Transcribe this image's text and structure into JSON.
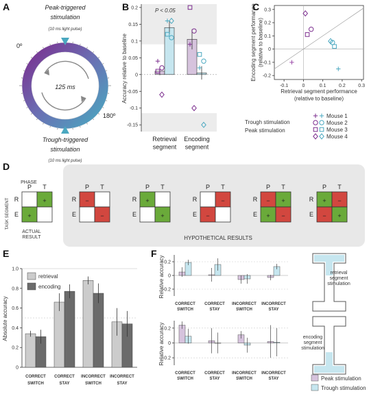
{
  "colors": {
    "peak": "#7b2d8e",
    "trough": "#4aa8c0",
    "peak_fill": "#d6c3dd",
    "trough_fill": "#c6e6ef",
    "ret_gray": "#cccccc",
    "enc_gray": "#6b6b6b",
    "correct": "#5aa02c",
    "incorrect": "#d0312d",
    "stay": "#4a78c0",
    "switch": "#111111",
    "plus_cell": "#6aaa3a",
    "minus_cell": "#d2473f",
    "mouse1": "#9b4aa8"
  },
  "panelA": {
    "label": "A",
    "peak_title": "Peak-triggered\nstimulation",
    "peak_sub": "(10 ms light pulse)",
    "trough_title": "Trough-triggered\nstimulation",
    "trough_sub": "(10 ms light pulse)",
    "period": "125 ms",
    "deg0": "0º",
    "deg180": "180º"
  },
  "panelB": {
    "label": "B",
    "ylabel": "Accuracy relative to baseline",
    "sig": "P < 0.05",
    "y_ticks": [
      "0.2",
      "0.15",
      "0.1",
      "0.05",
      "0",
      "-0.05",
      "-0.1",
      "-0.15"
    ],
    "groups": [
      "Retrieval\nsegment",
      "Encoding\nsegment"
    ]
  },
  "panelC": {
    "label": "C",
    "xlabel": "Retrieval segment performance\n(relative to baseline)",
    "ylabel": "Encoding segment performance\n(relative to baseline)",
    "x_ticks": [
      "-0.1",
      "0",
      "0.1",
      "0.2",
      "0.3"
    ],
    "y_ticks": [
      "0.3",
      "0.2",
      "0.1",
      "0",
      "-0.1",
      "-0.2"
    ],
    "mice": [
      "Mouse 1",
      "Mouse 2",
      "Mouse 3",
      "Mouse 4"
    ],
    "trough_label": "Trough stimulation",
    "peak_label": "Peak stimulation"
  },
  "panelD": {
    "label": "D",
    "phase": "PHASE",
    "task_segment": "TASK SEGMENT",
    "P": "P",
    "T": "T",
    "R": "R",
    "E": "E",
    "actual": "ACTUAL\nRESULT",
    "hypothetical": "HYPOTHETICAL RESULTS",
    "plus": "+",
    "minus": "−"
  },
  "panelE": {
    "label": "E",
    "ylabel": "Absolute accuracy",
    "legend": [
      "retrieval",
      "encoding"
    ],
    "y_ticks": [
      "1.0",
      "0.8",
      "0.6",
      "0.4",
      "0.2",
      "0"
    ],
    "cat_top": [
      "CORRECT",
      "CORRECT",
      "INCORRECT",
      "INCORRECT"
    ],
    "cat_bottom": [
      "SWITCH",
      "STAY",
      "SWITCH",
      "STAY"
    ]
  },
  "panelF": {
    "label": "F",
    "ylabel": "Relative accuracy",
    "y_ticks": [
      "0.2",
      "0",
      "-0.2"
    ],
    "cat_top": [
      "CORRECT",
      "CORRECT",
      "INCORRECT",
      "INCORRECT"
    ],
    "cat_bottom": [
      "SWITCH",
      "STAY",
      "SWITCH",
      "STAY"
    ],
    "retrieval_label": "retrieval\nsegment\nstimulation",
    "encoding_label": "encoding\nsegment\nstimulation",
    "legend_peak": "Peak stimulation",
    "legend_trough": "Trough stimulation"
  },
  "chart_data": [
    {
      "type": "bar",
      "panel": "B",
      "categories": [
        "Retrieval segment",
        "Encoding segment"
      ],
      "ylim": [
        -0.17,
        0.21
      ],
      "series": [
        {
          "name": "Peak stimulation",
          "values": [
            0.01,
            0.105
          ],
          "err": [
            0.012,
            0.03
          ],
          "points": [
            [
              0.04,
              0.02,
              0.01,
              -0.06
            ],
            [
              0.09,
              0.13,
              0.2,
              -0.1
            ]
          ]
        },
        {
          "name": "Trough stimulation",
          "values": [
            0.14,
            0.005
          ],
          "err": [
            0.02,
            0.02
          ],
          "points": [
            [
              0.16,
              0.11,
              0.12,
              0.16
            ],
            [
              0.02,
              0.04,
              0.06,
              -0.15
            ]
          ]
        }
      ]
    },
    {
      "type": "scatter",
      "panel": "C",
      "xlim": [
        -0.15,
        0.31
      ],
      "ylim": [
        -0.23,
        0.33
      ],
      "peak": [
        {
          "mouse": "Mouse 1",
          "x": -0.06,
          "y": -0.1
        },
        {
          "mouse": "Mouse 2",
          "x": 0.04,
          "y": 0.15
        },
        {
          "mouse": "Mouse 3",
          "x": 0.02,
          "y": 0.11
        },
        {
          "mouse": "Mouse 4",
          "x": 0.01,
          "y": 0.27
        }
      ],
      "trough": [
        {
          "mouse": "Mouse 1",
          "x": 0.18,
          "y": -0.15
        },
        {
          "mouse": "Mouse 2",
          "x": 0.15,
          "y": 0.05
        },
        {
          "mouse": "Mouse 3",
          "x": 0.16,
          "y": 0.02
        },
        {
          "mouse": "Mouse 4",
          "x": 0.14,
          "y": 0.06
        }
      ]
    },
    {
      "type": "table",
      "panel": "D",
      "actual": [
        [
          "",
          "+"
        ],
        [
          "+",
          ""
        ]
      ],
      "hypothetical": [
        [
          [
            "-",
            ""
          ],
          [
            "",
            "-"
          ]
        ],
        [
          [
            "+",
            ""
          ],
          [
            "",
            "+"
          ]
        ],
        [
          [
            "",
            "-"
          ],
          [
            "-",
            ""
          ]
        ],
        [
          [
            "-",
            "+"
          ],
          [
            "+",
            "-"
          ]
        ],
        [
          [
            "+",
            "-"
          ],
          [
            "-",
            "+"
          ]
        ]
      ]
    },
    {
      "type": "bar",
      "panel": "E",
      "categories": [
        "CORRECT SWITCH",
        "CORRECT STAY",
        "INCORRECT SWITCH",
        "INCORRECT STAY"
      ],
      "ylim": [
        0,
        1.0
      ],
      "series": [
        {
          "name": "retrieval",
          "values": [
            0.34,
            0.66,
            0.88,
            0.46
          ],
          "err": [
            0.03,
            0.09,
            0.04,
            0.14
          ]
        },
        {
          "name": "encoding",
          "values": [
            0.31,
            0.77,
            0.75,
            0.44
          ],
          "err": [
            0.07,
            0.07,
            0.1,
            0.13
          ]
        }
      ]
    },
    {
      "type": "bar",
      "panel": "F-retrieval",
      "categories": [
        "CORRECT SWITCH",
        "CORRECT STAY",
        "INCORRECT SWITCH",
        "INCORRECT STAY"
      ],
      "ylim": [
        -0.3,
        0.3
      ],
      "series": [
        {
          "name": "Peak stimulation",
          "values": [
            0.05,
            0.01,
            -0.06,
            -0.03
          ],
          "err": [
            0.07,
            0.1,
            0.06,
            0.04
          ]
        },
        {
          "name": "Trough stimulation",
          "values": [
            0.19,
            0.16,
            -0.05,
            0.13
          ],
          "err": [
            0.04,
            0.09,
            0.07,
            0.04
          ]
        }
      ]
    },
    {
      "type": "bar",
      "panel": "F-encoding",
      "categories": [
        "CORRECT SWITCH",
        "CORRECT STAY",
        "INCORRECT SWITCH",
        "INCORRECT STAY"
      ],
      "ylim": [
        -0.3,
        0.3
      ],
      "series": [
        {
          "name": "Peak stimulation",
          "values": [
            0.24,
            0.03,
            0.11,
            0.02
          ],
          "err": [
            0.05,
            0.17,
            0.05,
            0.22
          ]
        },
        {
          "name": "Trough stimulation",
          "values": [
            0.09,
            0.0,
            -0.03,
            0.01
          ],
          "err": [
            0.1,
            0.14,
            0.1,
            0.19
          ]
        }
      ]
    }
  ]
}
